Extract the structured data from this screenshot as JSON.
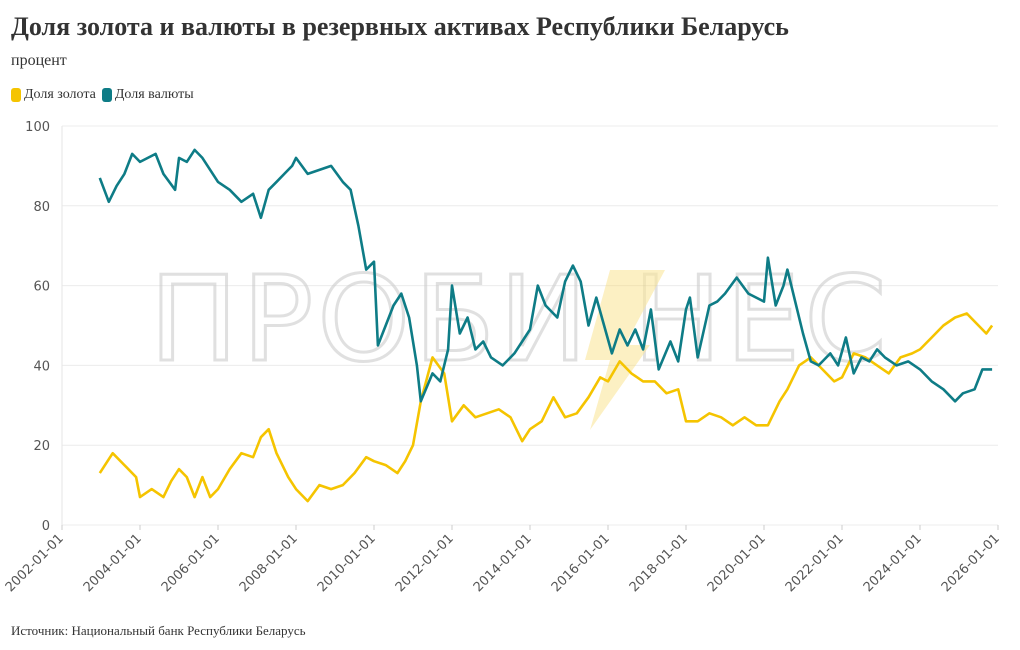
{
  "title": "Доля золота и валюты в резервных активах Республики Беларусь",
  "subtitle": "процент",
  "source": "Источник: Национальный банк Республики Беларусь",
  "watermark": "ПРОБИЗНЕС",
  "chart_data": {
    "type": "line",
    "title": "Доля золота и валюты в резервных активах Республики Беларусь",
    "ylabel": "процент",
    "xlabel": "",
    "ylim": [
      0,
      100
    ],
    "xlim": [
      2002,
      2026
    ],
    "yticks": [
      "0",
      "20",
      "40",
      "60",
      "80",
      "100"
    ],
    "xticks": [
      "2002-01-01",
      "2004-01-01",
      "2006-01-01",
      "2008-01-01",
      "2010-01-01",
      "2012-01-01",
      "2014-01-01",
      "2016-01-01",
      "2018-01-01",
      "2020-01-01",
      "2022-01-01",
      "2024-01-01",
      "2026-01-01"
    ],
    "grid": true,
    "legend_position": "top-left",
    "series": [
      {
        "name": "Доля золота",
        "color": "#f5c400",
        "points": [
          [
            2002.97,
            13
          ],
          [
            2003.3,
            18
          ],
          [
            2003.6,
            15
          ],
          [
            2003.9,
            12
          ],
          [
            2004.0,
            7
          ],
          [
            2004.3,
            9
          ],
          [
            2004.6,
            7
          ],
          [
            2004.8,
            11
          ],
          [
            2005.0,
            14
          ],
          [
            2005.2,
            12
          ],
          [
            2005.4,
            7
          ],
          [
            2005.6,
            12
          ],
          [
            2005.8,
            7
          ],
          [
            2006.0,
            9
          ],
          [
            2006.3,
            14
          ],
          [
            2006.6,
            18
          ],
          [
            2006.9,
            17
          ],
          [
            2007.1,
            22
          ],
          [
            2007.3,
            24
          ],
          [
            2007.5,
            18
          ],
          [
            2007.8,
            12
          ],
          [
            2008.0,
            9
          ],
          [
            2008.3,
            6
          ],
          [
            2008.6,
            10
          ],
          [
            2008.9,
            9
          ],
          [
            2009.2,
            10
          ],
          [
            2009.5,
            13
          ],
          [
            2009.8,
            17
          ],
          [
            2010.0,
            16
          ],
          [
            2010.3,
            15
          ],
          [
            2010.6,
            13
          ],
          [
            2010.8,
            16
          ],
          [
            2011.0,
            20
          ],
          [
            2011.2,
            31
          ],
          [
            2011.5,
            42
          ],
          [
            2011.8,
            38
          ],
          [
            2012.0,
            26
          ],
          [
            2012.3,
            30
          ],
          [
            2012.6,
            27
          ],
          [
            2012.9,
            28
          ],
          [
            2013.2,
            29
          ],
          [
            2013.5,
            27
          ],
          [
            2013.8,
            21
          ],
          [
            2014.0,
            24
          ],
          [
            2014.3,
            26
          ],
          [
            2014.6,
            32
          ],
          [
            2014.9,
            27
          ],
          [
            2015.2,
            28
          ],
          [
            2015.5,
            32
          ],
          [
            2015.8,
            37
          ],
          [
            2016.0,
            36
          ],
          [
            2016.3,
            41
          ],
          [
            2016.6,
            38
          ],
          [
            2016.9,
            36
          ],
          [
            2017.2,
            36
          ],
          [
            2017.5,
            33
          ],
          [
            2017.8,
            34
          ],
          [
            2018.0,
            26
          ],
          [
            2018.3,
            26
          ],
          [
            2018.6,
            28
          ],
          [
            2018.9,
            27
          ],
          [
            2019.2,
            25
          ],
          [
            2019.5,
            27
          ],
          [
            2019.8,
            25
          ],
          [
            2020.1,
            25
          ],
          [
            2020.4,
            31
          ],
          [
            2020.6,
            34
          ],
          [
            2020.9,
            40
          ],
          [
            2021.2,
            42
          ],
          [
            2021.5,
            39
          ],
          [
            2021.8,
            36
          ],
          [
            2022.0,
            37
          ],
          [
            2022.3,
            43
          ],
          [
            2022.6,
            42
          ],
          [
            2022.9,
            40
          ],
          [
            2023.2,
            38
          ],
          [
            2023.5,
            42
          ],
          [
            2023.8,
            43
          ],
          [
            2024.0,
            44
          ],
          [
            2024.3,
            47
          ],
          [
            2024.6,
            50
          ],
          [
            2024.9,
            52
          ],
          [
            2025.2,
            53
          ],
          [
            2025.5,
            50
          ],
          [
            2025.7,
            48
          ],
          [
            2025.85,
            50
          ]
        ]
      },
      {
        "name": "Доля валюты",
        "color": "#0e7c86",
        "points": [
          [
            2002.97,
            87
          ],
          [
            2003.2,
            81
          ],
          [
            2003.4,
            85
          ],
          [
            2003.6,
            88
          ],
          [
            2003.8,
            93
          ],
          [
            2004.0,
            91
          ],
          [
            2004.2,
            92
          ],
          [
            2004.4,
            93
          ],
          [
            2004.6,
            88
          ],
          [
            2004.9,
            84
          ],
          [
            2005.0,
            92
          ],
          [
            2005.2,
            91
          ],
          [
            2005.4,
            94
          ],
          [
            2005.6,
            92
          ],
          [
            2005.8,
            89
          ],
          [
            2006.0,
            86
          ],
          [
            2006.3,
            84
          ],
          [
            2006.6,
            81
          ],
          [
            2006.9,
            83
          ],
          [
            2007.1,
            77
          ],
          [
            2007.3,
            84
          ],
          [
            2007.5,
            86
          ],
          [
            2007.7,
            88
          ],
          [
            2007.9,
            90
          ],
          [
            2008.0,
            92
          ],
          [
            2008.3,
            88
          ],
          [
            2008.6,
            89
          ],
          [
            2008.9,
            90
          ],
          [
            2009.2,
            86
          ],
          [
            2009.4,
            84
          ],
          [
            2009.6,
            75
          ],
          [
            2009.8,
            64
          ],
          [
            2010.0,
            66
          ],
          [
            2010.1,
            45
          ],
          [
            2010.3,
            50
          ],
          [
            2010.5,
            55
          ],
          [
            2010.7,
            58
          ],
          [
            2010.9,
            52
          ],
          [
            2011.1,
            40
          ],
          [
            2011.2,
            31
          ],
          [
            2011.5,
            38
          ],
          [
            2011.7,
            36
          ],
          [
            2011.9,
            44
          ],
          [
            2012.0,
            60
          ],
          [
            2012.2,
            48
          ],
          [
            2012.4,
            52
          ],
          [
            2012.6,
            44
          ],
          [
            2012.8,
            46
          ],
          [
            2013.0,
            42
          ],
          [
            2013.3,
            40
          ],
          [
            2013.6,
            43
          ],
          [
            2014.0,
            49
          ],
          [
            2014.2,
            60
          ],
          [
            2014.4,
            55
          ],
          [
            2014.7,
            52
          ],
          [
            2014.9,
            61
          ],
          [
            2015.1,
            65
          ],
          [
            2015.3,
            61
          ],
          [
            2015.5,
            50
          ],
          [
            2015.7,
            57
          ],
          [
            2015.9,
            50
          ],
          [
            2016.1,
            43
          ],
          [
            2016.3,
            49
          ],
          [
            2016.5,
            45
          ],
          [
            2016.7,
            49
          ],
          [
            2016.9,
            44
          ],
          [
            2017.1,
            54
          ],
          [
            2017.3,
            39
          ],
          [
            2017.6,
            46
          ],
          [
            2017.8,
            41
          ],
          [
            2018.0,
            54
          ],
          [
            2018.1,
            57
          ],
          [
            2018.3,
            42
          ],
          [
            2018.6,
            55
          ],
          [
            2018.8,
            56
          ],
          [
            2019.0,
            58
          ],
          [
            2019.3,
            62
          ],
          [
            2019.6,
            58
          ],
          [
            2020.0,
            56
          ],
          [
            2020.1,
            67
          ],
          [
            2020.3,
            55
          ],
          [
            2020.5,
            60
          ],
          [
            2020.6,
            64
          ],
          [
            2020.8,
            56
          ],
          [
            2021.0,
            48
          ],
          [
            2021.2,
            41
          ],
          [
            2021.4,
            40
          ],
          [
            2021.7,
            43
          ],
          [
            2021.9,
            40
          ],
          [
            2022.1,
            47
          ],
          [
            2022.3,
            38
          ],
          [
            2022.5,
            42
          ],
          [
            2022.7,
            41
          ],
          [
            2022.9,
            44
          ],
          [
            2023.1,
            42
          ],
          [
            2023.4,
            40
          ],
          [
            2023.7,
            41
          ],
          [
            2024.0,
            39
          ],
          [
            2024.3,
            36
          ],
          [
            2024.6,
            34
          ],
          [
            2024.9,
            31
          ],
          [
            2025.1,
            33
          ],
          [
            2025.4,
            34
          ],
          [
            2025.6,
            39
          ],
          [
            2025.85,
            39
          ]
        ]
      }
    ]
  }
}
